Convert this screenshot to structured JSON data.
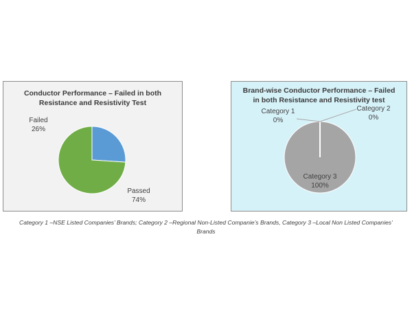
{
  "chart_data": [
    {
      "type": "pie",
      "title": "Conductor Performance – Failed in both Resistance and Resistivity Test",
      "title_lines": [
        "Conductor Performance – Failed in both",
        "Resistance and Resistivity Test"
      ],
      "categories": [
        "Failed",
        "Passed"
      ],
      "values": [
        26,
        74
      ],
      "value_labels": [
        "26%",
        "74%"
      ],
      "colors": [
        "#5b9bd5",
        "#70ad47"
      ],
      "legend": "none"
    },
    {
      "type": "pie",
      "title": "Brand-wise Conductor Performance – Failed in both Resistance and Resistivity test",
      "title_lines": [
        "Brand-wise Conductor Performance – Failed",
        "in both Resistance and Resistivity test"
      ],
      "categories": [
        "Category 1",
        "Category 2",
        "Category 3"
      ],
      "values": [
        0,
        0,
        100
      ],
      "value_labels": [
        "0%",
        "0%",
        "100%"
      ],
      "colors": [
        "#5b9bd5",
        "#ed7d31",
        "#a5a5a5"
      ],
      "legend": "none"
    }
  ],
  "caption": {
    "line1": "Category 1 –NSE Listed Companies’ Brands; Category 2 –Regional Non-Listed Companie’s Brands, Category 3 –Local Non Listed Companies’",
    "line2": "Brands"
  }
}
